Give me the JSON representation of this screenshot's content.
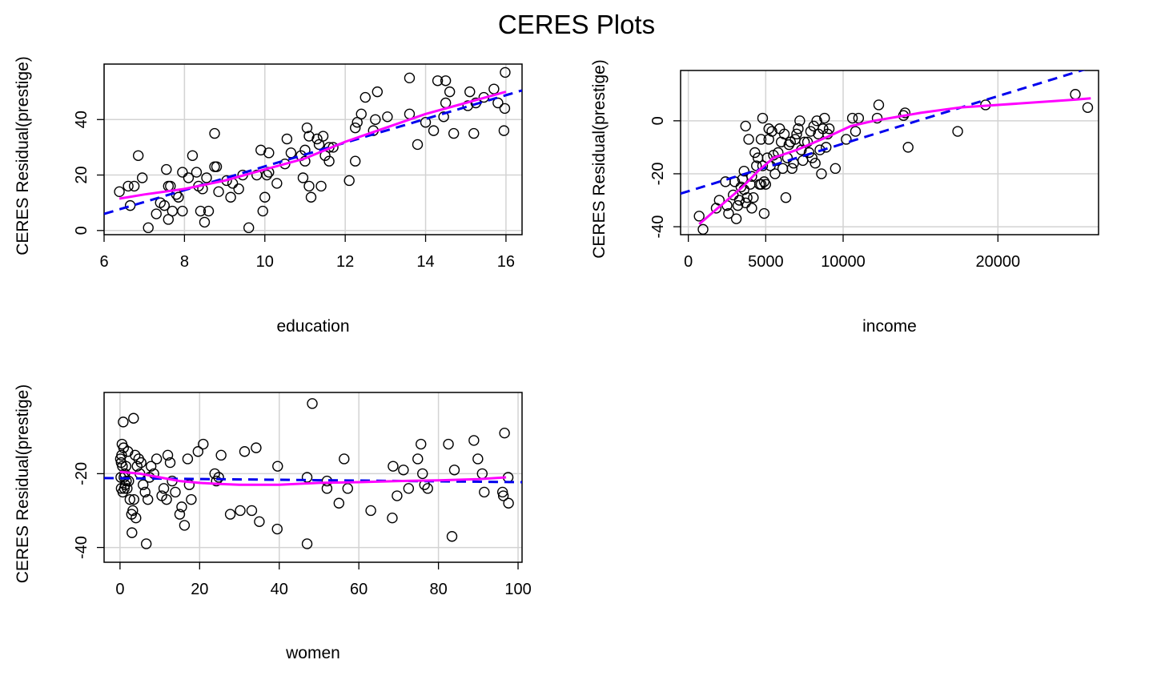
{
  "title": "CERES Plots",
  "colors": {
    "grid": "#d3d3d3",
    "points": "#000000",
    "linear_fit": "#0000ee",
    "smooth_fit": "#ff00ff"
  },
  "chart_data": [
    {
      "type": "scatter",
      "xlabel": "education",
      "ylabel": "CERES Residual(prestige)",
      "xlim": [
        6,
        16.4
      ],
      "ylim": [
        -1.5,
        60
      ],
      "xticks": [
        6,
        8,
        10,
        12,
        14,
        16
      ],
      "yticks": [
        0,
        20,
        40
      ],
      "grid": true,
      "points": [
        [
          6.38,
          14
        ],
        [
          6.6,
          16
        ],
        [
          6.65,
          9
        ],
        [
          6.75,
          16
        ],
        [
          6.85,
          27
        ],
        [
          6.95,
          19
        ],
        [
          7.1,
          1
        ],
        [
          7.3,
          6
        ],
        [
          7.4,
          10
        ],
        [
          7.5,
          9
        ],
        [
          7.55,
          22
        ],
        [
          7.6,
          4
        ],
        [
          7.6,
          16
        ],
        [
          7.65,
          16
        ],
        [
          7.7,
          7
        ],
        [
          7.8,
          13
        ],
        [
          7.85,
          12
        ],
        [
          7.95,
          7
        ],
        [
          7.95,
          21
        ],
        [
          8.1,
          19
        ],
        [
          8.2,
          27
        ],
        [
          8.3,
          21
        ],
        [
          8.35,
          16
        ],
        [
          8.4,
          7
        ],
        [
          8.45,
          15
        ],
        [
          8.5,
          3
        ],
        [
          8.55,
          19
        ],
        [
          8.6,
          7
        ],
        [
          8.75,
          35
        ],
        [
          8.75,
          23
        ],
        [
          8.8,
          23
        ],
        [
          8.85,
          14
        ],
        [
          9.05,
          18
        ],
        [
          9.15,
          12
        ],
        [
          9.2,
          17
        ],
        [
          9.35,
          15
        ],
        [
          9.45,
          20
        ],
        [
          9.6,
          1
        ],
        [
          9.8,
          20
        ],
        [
          9.9,
          29
        ],
        [
          9.95,
          7
        ],
        [
          10.0,
          12
        ],
        [
          10.05,
          20
        ],
        [
          10.1,
          21
        ],
        [
          10.1,
          28
        ],
        [
          10.3,
          17
        ],
        [
          10.5,
          24
        ],
        [
          10.55,
          33
        ],
        [
          10.65,
          28
        ],
        [
          10.9,
          27
        ],
        [
          10.95,
          19
        ],
        [
          11.0,
          29
        ],
        [
          11.0,
          25
        ],
        [
          11.05,
          37
        ],
        [
          11.1,
          16
        ],
        [
          11.1,
          34
        ],
        [
          11.15,
          12
        ],
        [
          11.3,
          33
        ],
        [
          11.35,
          31
        ],
        [
          11.4,
          16
        ],
        [
          11.45,
          34
        ],
        [
          11.5,
          27
        ],
        [
          11.6,
          25
        ],
        [
          11.6,
          30
        ],
        [
          11.7,
          30
        ],
        [
          12.1,
          18
        ],
        [
          12.25,
          25
        ],
        [
          12.25,
          37
        ],
        [
          12.3,
          39
        ],
        [
          12.4,
          42
        ],
        [
          12.5,
          48
        ],
        [
          12.7,
          36
        ],
        [
          12.75,
          40
        ],
        [
          12.8,
          50
        ],
        [
          13.05,
          41
        ],
        [
          13.6,
          55
        ],
        [
          13.6,
          42
        ],
        [
          13.8,
          31
        ],
        [
          14.0,
          39
        ],
        [
          14.2,
          36
        ],
        [
          14.3,
          54
        ],
        [
          14.45,
          41
        ],
        [
          14.5,
          46
        ],
        [
          14.5,
          54
        ],
        [
          14.6,
          50
        ],
        [
          14.7,
          35
        ],
        [
          15.05,
          45
        ],
        [
          15.1,
          50
        ],
        [
          15.2,
          35
        ],
        [
          15.25,
          46
        ],
        [
          15.45,
          48
        ],
        [
          15.7,
          51
        ],
        [
          15.8,
          46
        ],
        [
          15.95,
          36
        ],
        [
          15.97,
          44
        ],
        [
          15.98,
          57
        ]
      ],
      "linear_fit": [
        [
          6,
          6
        ],
        [
          16.4,
          50.5
        ]
      ],
      "smooth_fit": [
        [
          6.38,
          11.5
        ],
        [
          7,
          13
        ],
        [
          8,
          15
        ],
        [
          9,
          18
        ],
        [
          10,
          22
        ],
        [
          11,
          26
        ],
        [
          12,
          32
        ],
        [
          13,
          37
        ],
        [
          14,
          42
        ],
        [
          15,
          46
        ],
        [
          16,
          50
        ]
      ]
    },
    {
      "type": "scatter",
      "xlabel": "income",
      "ylabel": "CERES Residual(prestige)",
      "xlim": [
        -500,
        26500
      ],
      "ylim": [
        -43,
        19
      ],
      "xticks": [
        0,
        5000,
        10000,
        20000
      ],
      "yticks": [
        -40,
        -20,
        0
      ],
      "grid": true,
      "points": [
        [
          700,
          -36
        ],
        [
          950,
          -41
        ],
        [
          1800,
          -33
        ],
        [
          2000,
          -30
        ],
        [
          2400,
          -23
        ],
        [
          2500,
          -32
        ],
        [
          2600,
          -35
        ],
        [
          2900,
          -28
        ],
        [
          3000,
          -23
        ],
        [
          3100,
          -37
        ],
        [
          3200,
          -32
        ],
        [
          3300,
          -30
        ],
        [
          3400,
          -25
        ],
        [
          3500,
          -22
        ],
        [
          3600,
          -19
        ],
        [
          3600,
          -26
        ],
        [
          3700,
          -31
        ],
        [
          3700,
          -2
        ],
        [
          3800,
          -29
        ],
        [
          3900,
          -7
        ],
        [
          4000,
          -24
        ],
        [
          4100,
          -33
        ],
        [
          4100,
          -21
        ],
        [
          4200,
          -29
        ],
        [
          4300,
          -12
        ],
        [
          4400,
          -17
        ],
        [
          4500,
          -14
        ],
        [
          4600,
          -24
        ],
        [
          4700,
          -7
        ],
        [
          4700,
          -24
        ],
        [
          4800,
          -17
        ],
        [
          4800,
          1
        ],
        [
          4900,
          -35
        ],
        [
          4900,
          -23
        ],
        [
          5000,
          -24
        ],
        [
          5100,
          -14
        ],
        [
          5200,
          -3
        ],
        [
          5200,
          -7
        ],
        [
          5300,
          -17
        ],
        [
          5400,
          -4
        ],
        [
          5500,
          -13
        ],
        [
          5600,
          -20
        ],
        [
          5700,
          -15
        ],
        [
          5800,
          -12
        ],
        [
          5900,
          -3
        ],
        [
          6000,
          -8
        ],
        [
          6100,
          -18
        ],
        [
          6200,
          -5
        ],
        [
          6300,
          -29
        ],
        [
          6400,
          -14
        ],
        [
          6500,
          -9
        ],
        [
          6600,
          -8
        ],
        [
          6700,
          -18
        ],
        [
          6800,
          -16
        ],
        [
          6900,
          -7
        ],
        [
          7000,
          -5
        ],
        [
          7100,
          -3
        ],
        [
          7200,
          0
        ],
        [
          7300,
          -11
        ],
        [
          7400,
          -15
        ],
        [
          7500,
          -8
        ],
        [
          7700,
          -8
        ],
        [
          7800,
          -12
        ],
        [
          7900,
          -4
        ],
        [
          8000,
          -14
        ],
        [
          8100,
          -2
        ],
        [
          8200,
          -16
        ],
        [
          8300,
          0
        ],
        [
          8400,
          -5
        ],
        [
          8500,
          -11
        ],
        [
          8600,
          -20
        ],
        [
          8700,
          -3
        ],
        [
          8800,
          1
        ],
        [
          8900,
          -10
        ],
        [
          9000,
          -5
        ],
        [
          9100,
          -3
        ],
        [
          9500,
          -18
        ],
        [
          10200,
          -7
        ],
        [
          10600,
          1
        ],
        [
          10800,
          -4
        ],
        [
          11000,
          1
        ],
        [
          12200,
          1
        ],
        [
          12300,
          6
        ],
        [
          13900,
          2
        ],
        [
          14000,
          3
        ],
        [
          14200,
          -10
        ],
        [
          17400,
          -4
        ],
        [
          19200,
          6
        ],
        [
          25000,
          10
        ],
        [
          25800,
          5
        ]
      ],
      "linear_fit": [
        [
          -500,
          -27.5
        ],
        [
          26500,
          21
        ]
      ],
      "smooth_fit": [
        [
          700,
          -39
        ],
        [
          1500,
          -35
        ],
        [
          2500,
          -30
        ],
        [
          3500,
          -25
        ],
        [
          4500,
          -19
        ],
        [
          5500,
          -14
        ],
        [
          7000,
          -11
        ],
        [
          9000,
          -6
        ],
        [
          10500,
          -2
        ],
        [
          12000,
          0
        ],
        [
          13500,
          1.5
        ],
        [
          15000,
          3
        ],
        [
          17500,
          5
        ],
        [
          20000,
          6
        ],
        [
          25000,
          8
        ],
        [
          26000,
          8.5
        ]
      ]
    },
    {
      "type": "scatter",
      "xlabel": "women",
      "ylabel": "CERES Residual(prestige)",
      "xlim": [
        -4,
        101
      ],
      "ylim": [
        -44,
        2
      ],
      "xticks": [
        0,
        20,
        40,
        60,
        80,
        100
      ],
      "yticks": [
        -40,
        -20
      ],
      "grid": true,
      "points": [
        [
          0.1,
          -16
        ],
        [
          0.2,
          -21
        ],
        [
          0.3,
          -24
        ],
        [
          0.3,
          -17
        ],
        [
          0.4,
          -15
        ],
        [
          0.5,
          -12
        ],
        [
          0.6,
          -18
        ],
        [
          0.7,
          -25
        ],
        [
          0.8,
          -6
        ],
        [
          0.9,
          -13
        ],
        [
          1.0,
          -21
        ],
        [
          1.1,
          -24
        ],
        [
          1.2,
          -20
        ],
        [
          1.3,
          -23
        ],
        [
          1.5,
          -18
        ],
        [
          1.6,
          -22
        ],
        [
          1.8,
          -24
        ],
        [
          2.0,
          -14
        ],
        [
          2.2,
          -22
        ],
        [
          2.5,
          -27
        ],
        [
          2.9,
          -31
        ],
        [
          3.0,
          -36
        ],
        [
          3.2,
          -30
        ],
        [
          3.4,
          -5
        ],
        [
          3.5,
          -27
        ],
        [
          3.8,
          -15
        ],
        [
          4.0,
          -32
        ],
        [
          4.3,
          -18
        ],
        [
          4.7,
          -16
        ],
        [
          5.0,
          -20
        ],
        [
          5.3,
          -17
        ],
        [
          5.8,
          -23
        ],
        [
          6.3,
          -25
        ],
        [
          6.6,
          -39
        ],
        [
          7.0,
          -27
        ],
        [
          7.4,
          -21
        ],
        [
          7.8,
          -18
        ],
        [
          8.5,
          -20
        ],
        [
          9.2,
          -16
        ],
        [
          10.5,
          -26
        ],
        [
          11.0,
          -24
        ],
        [
          11.7,
          -27
        ],
        [
          12.0,
          -15
        ],
        [
          12.6,
          -17
        ],
        [
          13.1,
          -22
        ],
        [
          13.9,
          -25
        ],
        [
          15.0,
          -31
        ],
        [
          15.5,
          -29
        ],
        [
          16.2,
          -34
        ],
        [
          17.0,
          -16
        ],
        [
          17.4,
          -23
        ],
        [
          17.9,
          -27
        ],
        [
          19.6,
          -14
        ],
        [
          20.9,
          -12
        ],
        [
          23.8,
          -20
        ],
        [
          24.2,
          -22
        ],
        [
          24.8,
          -21
        ],
        [
          25.4,
          -15
        ],
        [
          27.7,
          -31
        ],
        [
          30.2,
          -30
        ],
        [
          31.3,
          -14
        ],
        [
          33.1,
          -30
        ],
        [
          34.2,
          -13
        ],
        [
          35.0,
          -33
        ],
        [
          39.5,
          -35
        ],
        [
          39.6,
          -18
        ],
        [
          47.0,
          -39
        ],
        [
          47.0,
          -21
        ],
        [
          48.3,
          -1
        ],
        [
          52.0,
          -22
        ],
        [
          52.0,
          -24
        ],
        [
          55.0,
          -28
        ],
        [
          56.3,
          -16
        ],
        [
          57.2,
          -24
        ],
        [
          63.0,
          -30
        ],
        [
          68.4,
          -32
        ],
        [
          68.6,
          -18
        ],
        [
          69.6,
          -26
        ],
        [
          71.2,
          -19
        ],
        [
          72.5,
          -24
        ],
        [
          74.8,
          -16
        ],
        [
          75.6,
          -12
        ],
        [
          76.0,
          -20
        ],
        [
          76.5,
          -23
        ],
        [
          77.3,
          -24
        ],
        [
          82.5,
          -12
        ],
        [
          83.4,
          -37
        ],
        [
          84.0,
          -19
        ],
        [
          88.9,
          -11
        ],
        [
          89.9,
          -16
        ],
        [
          91.0,
          -20
        ],
        [
          91.5,
          -25
        ],
        [
          96.1,
          -25
        ],
        [
          96.3,
          -26
        ],
        [
          96.6,
          -9
        ],
        [
          97.5,
          -21
        ],
        [
          97.6,
          -28
        ]
      ],
      "linear_fit": [
        [
          -4,
          -21.2
        ],
        [
          101,
          -22.3
        ]
      ],
      "smooth_fit": [
        [
          0,
          -19.5
        ],
        [
          5,
          -20
        ],
        [
          10,
          -21
        ],
        [
          15,
          -22
        ],
        [
          20,
          -22.5
        ],
        [
          25,
          -22.8
        ],
        [
          30,
          -23
        ],
        [
          40,
          -23
        ],
        [
          50,
          -22.5
        ],
        [
          60,
          -22.3
        ],
        [
          70,
          -22
        ],
        [
          80,
          -21.8
        ],
        [
          90,
          -21.5
        ],
        [
          97,
          -21
        ]
      ]
    }
  ]
}
